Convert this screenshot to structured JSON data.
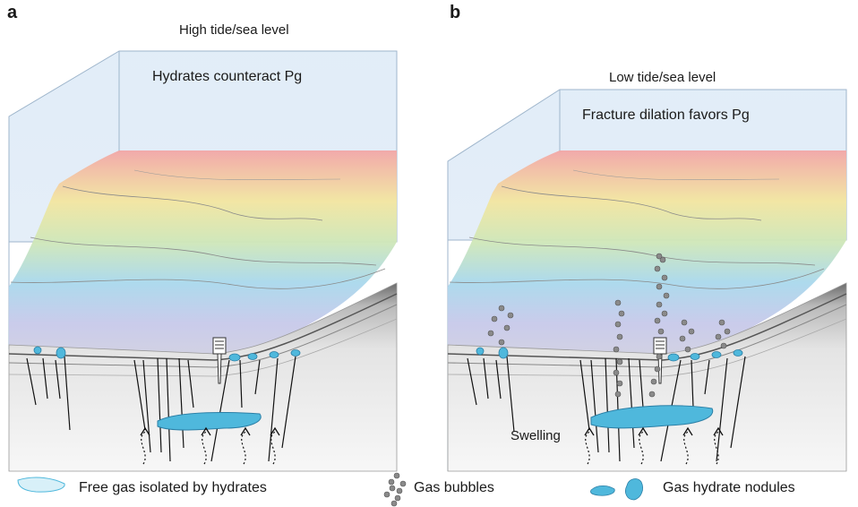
{
  "panel_a": {
    "letter": "a",
    "level_label": "High tide/sea level",
    "box_label": "Hydrates counteract Pg"
  },
  "panel_b": {
    "letter": "b",
    "level_label": "Low tide/sea level",
    "box_label": "Fracture dilation favors Pg",
    "swelling_label": "Swelling"
  },
  "legend": {
    "free_gas": "Free gas isolated by hydrates",
    "gas_bubbles": "Gas bubbles",
    "hydrate_nodules": "Gas hydrate nodules"
  },
  "colors": {
    "water_fill": "#cfe2f3",
    "hydrate": "#4fb8dc",
    "free_gas": "#d8f0f8",
    "bubble": "#8a8a8a"
  }
}
